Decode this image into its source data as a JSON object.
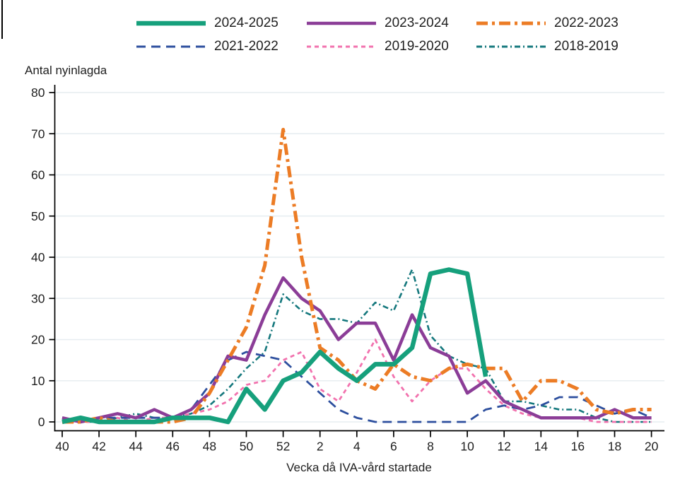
{
  "figure": {
    "background": "#ffffff",
    "text_color": "#1f1f1f",
    "grid_color": "#e7edf1",
    "axis_color": "#000000"
  },
  "chart_data": {
    "type": "line",
    "title": "",
    "x_axis": {
      "label": "Vecka då IVA-vård startade",
      "categories": [
        "40",
        "41",
        "42",
        "43",
        "44",
        "45",
        "46",
        "47",
        "48",
        "49",
        "50",
        "51",
        "52",
        "1",
        "2",
        "3",
        "4",
        "5",
        "6",
        "7",
        "8",
        "9",
        "10",
        "11",
        "12",
        "13",
        "14",
        "15",
        "16",
        "17",
        "18",
        "19",
        "20"
      ],
      "tick_every": 2
    },
    "y_axis": {
      "label": "Antal nyinlagda",
      "min": 0,
      "max": 80,
      "tick_step": 10
    },
    "grid": "horizontal-light",
    "legend_position": "top",
    "legend_rows": [
      [
        "2024-2025",
        "2023-2024",
        "2022-2023"
      ],
      [
        "2021-2022",
        "2019-2020",
        "2018-2019"
      ]
    ],
    "draw_order": [
      "2018-2019",
      "2019-2020",
      "2021-2022",
      "2023-2024",
      "2022-2023",
      "2024-2025"
    ],
    "series": [
      {
        "name": "2024-2025",
        "color": "#16a07c",
        "line_style": "solid",
        "stroke_width": 6.5,
        "dash": "",
        "values": [
          0,
          1,
          0,
          0,
          0,
          0,
          1,
          1,
          1,
          0,
          8,
          3,
          10,
          12,
          17,
          13,
          10,
          14,
          14,
          18,
          36,
          37,
          36,
          11,
          null,
          null,
          null,
          null,
          null,
          null,
          null,
          null,
          null
        ]
      },
      {
        "name": "2023-2024",
        "color": "#8b3d97",
        "line_style": "solid",
        "stroke_width": 4.5,
        "dash": "",
        "values": [
          1,
          0,
          1,
          2,
          1,
          3,
          1,
          3,
          7,
          16,
          15,
          26,
          35,
          30,
          27,
          20,
          24,
          24,
          15,
          26,
          18,
          16,
          7,
          10,
          5,
          3,
          1,
          1,
          1,
          1,
          3,
          1,
          1
        ]
      },
      {
        "name": "2022-2023",
        "color": "#ec7c25",
        "line_style": "dash-dot",
        "stroke_width": 5,
        "dash": "16 6 4 6",
        "values": [
          0,
          0,
          1,
          0,
          0,
          0,
          0,
          1,
          7,
          15,
          23,
          38,
          71,
          40,
          18,
          15,
          10,
          8,
          14,
          11,
          10,
          13,
          14,
          13,
          13,
          5,
          10,
          10,
          8,
          3,
          2,
          3,
          3
        ]
      },
      {
        "name": "2021-2022",
        "color": "#2d4f9e",
        "line_style": "dashed",
        "stroke_width": 2.8,
        "dash": "13 8",
        "values": [
          0,
          0,
          1,
          1,
          1,
          1,
          1,
          3,
          9,
          15,
          17,
          16,
          15,
          11,
          7,
          3,
          1,
          0,
          0,
          0,
          0,
          0,
          0,
          3,
          4,
          3,
          4,
          6,
          6,
          4,
          2,
          3,
          1
        ]
      },
      {
        "name": "2019-2020",
        "color": "#f272ae",
        "line_style": "short-dash",
        "stroke_width": 2.8,
        "dash": "6 5",
        "values": [
          0,
          0,
          0,
          1,
          0,
          1,
          1,
          2,
          3,
          5,
          9,
          10,
          15,
          17,
          8,
          5,
          12,
          20,
          11,
          5,
          10,
          13,
          13,
          8,
          4,
          2,
          1,
          1,
          1,
          0,
          0,
          0,
          0
        ]
      },
      {
        "name": "2018-2019",
        "color": "#15787d",
        "line_style": "dash-dot-small",
        "stroke_width": 2.6,
        "dash": "8 4 2 4",
        "values": [
          1,
          0,
          0,
          1,
          2,
          1,
          1,
          2,
          4,
          8,
          13,
          17,
          31,
          27,
          25,
          25,
          24,
          29,
          27,
          37,
          21,
          16,
          14,
          13,
          5,
          5,
          4,
          3,
          3,
          1,
          0,
          0,
          0
        ]
      }
    ]
  }
}
